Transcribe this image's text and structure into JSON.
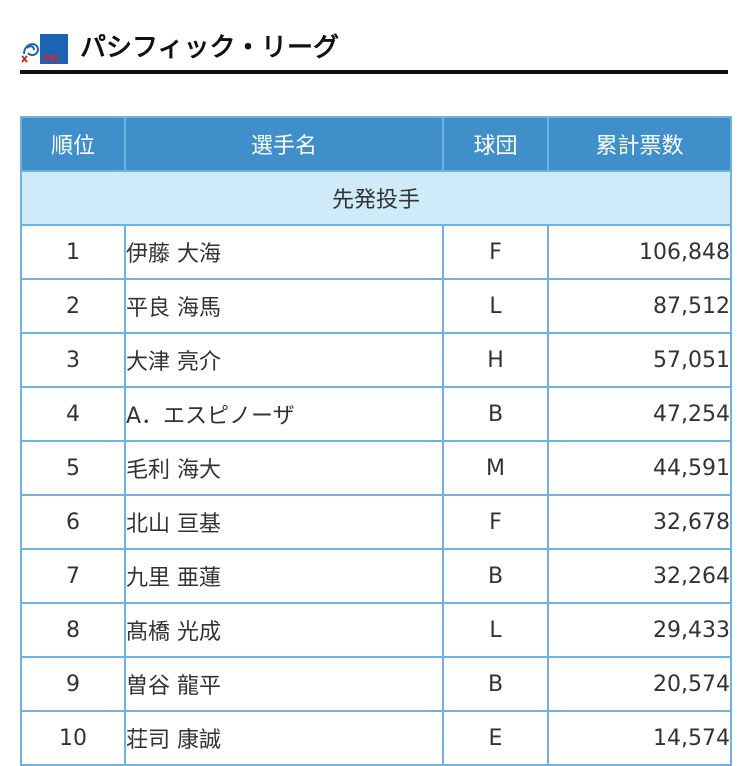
{
  "header": {
    "logo_text": "PBL",
    "title": "パシフィック・リーグ"
  },
  "colors": {
    "header_bg": "#3f8fcb",
    "section_bg": "#cfeaf9",
    "border": "#6fb3dd",
    "title_rule": "#111111"
  },
  "table": {
    "columns": [
      "順位",
      "選手名",
      "球団",
      "累計票数"
    ],
    "section": "先発投手",
    "rows": [
      {
        "rank": "1",
        "player": "伊藤 大海",
        "team": "F",
        "votes": "106,848"
      },
      {
        "rank": "2",
        "player": "平良 海馬",
        "team": "L",
        "votes": "87,512"
      },
      {
        "rank": "3",
        "player": "大津 亮介",
        "team": "H",
        "votes": "57,051"
      },
      {
        "rank": "4",
        "player": "A．エスピノーザ",
        "team": "B",
        "votes": "47,254"
      },
      {
        "rank": "5",
        "player": "毛利 海大",
        "team": "M",
        "votes": "44,591"
      },
      {
        "rank": "6",
        "player": "北山 亘基",
        "team": "F",
        "votes": "32,678"
      },
      {
        "rank": "7",
        "player": "九里 亜蓮",
        "team": "B",
        "votes": "32,264"
      },
      {
        "rank": "8",
        "player": "髙橋 光成",
        "team": "L",
        "votes": "29,433"
      },
      {
        "rank": "9",
        "player": "曽谷 龍平",
        "team": "B",
        "votes": "20,574"
      },
      {
        "rank": "10",
        "player": "荘司 康誠",
        "team": "E",
        "votes": "14,574"
      }
    ]
  }
}
